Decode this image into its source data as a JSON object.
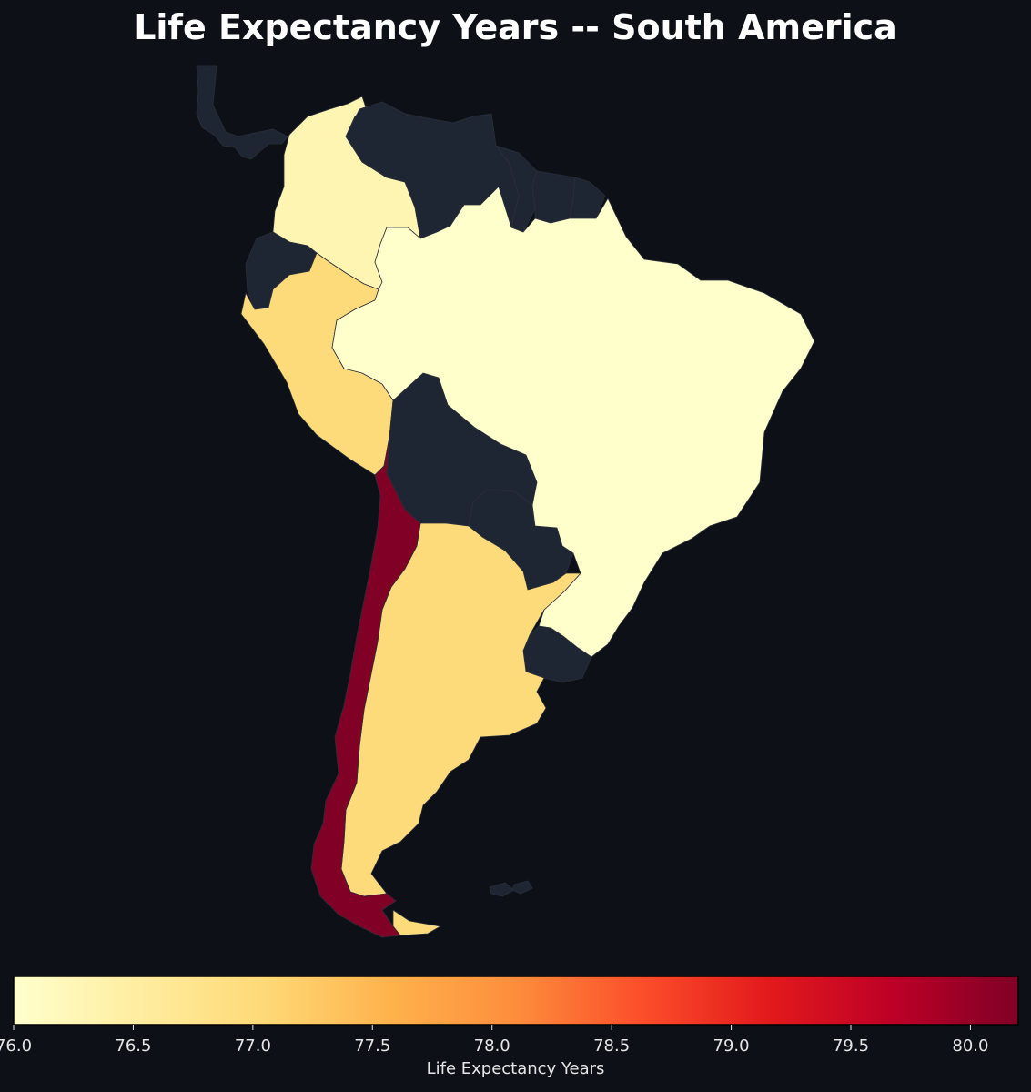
{
  "title": "Life Expectancy Years -- South America",
  "colors": {
    "background": "#0d1017",
    "no_data": "#1f2633",
    "colormap": [
      "#ffffcc",
      "#ffeda0",
      "#fed976",
      "#feb24c",
      "#fd8d3c",
      "#fc4e2a",
      "#e31a1c",
      "#bd0026",
      "#800026"
    ]
  },
  "chart_data": {
    "type": "choropleth",
    "region": "South America",
    "value_label": "Life Expectancy Years",
    "vmin": 76.0,
    "vmax": 80.2,
    "countries": [
      {
        "name": "Colombia",
        "value": 76.3
      },
      {
        "name": "Brazil",
        "value": 76.0
      },
      {
        "name": "Peru",
        "value": 77.0
      },
      {
        "name": "Argentina",
        "value": 77.0
      },
      {
        "name": "Chile",
        "value": 80.2
      },
      {
        "name": "Venezuela",
        "value": null
      },
      {
        "name": "Guyana",
        "value": null
      },
      {
        "name": "Suriname",
        "value": null
      },
      {
        "name": "French Guiana",
        "value": null
      },
      {
        "name": "Ecuador",
        "value": null
      },
      {
        "name": "Bolivia",
        "value": null
      },
      {
        "name": "Paraguay",
        "value": null
      },
      {
        "name": "Uruguay",
        "value": null
      },
      {
        "name": "Panama",
        "value": null
      },
      {
        "name": "Falkland Islands",
        "value": null
      }
    ],
    "colorbar": {
      "label": "Life Expectancy Years",
      "ticks": [
        "76.0",
        "76.5",
        "77.0",
        "77.5",
        "78.0",
        "78.5",
        "79.0",
        "79.5",
        "80.0"
      ],
      "tick_values": [
        76.0,
        76.5,
        77.0,
        77.5,
        78.0,
        78.5,
        79.0,
        79.5,
        80.0
      ],
      "placement": "bottom"
    }
  }
}
